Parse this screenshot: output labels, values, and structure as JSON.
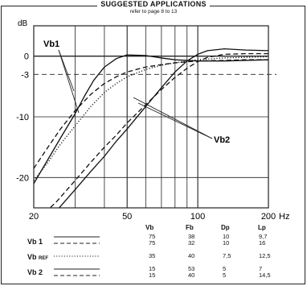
{
  "header": {
    "title": "SUGGESTED APPLICATIONS",
    "subtitle": "refer to page 8 to 13"
  },
  "chart_data": {
    "type": "line",
    "title": "SUGGESTED APPLICATIONS",
    "subtitle": "refer to page 8 to 13",
    "x_scale": "log",
    "xlim": [
      20,
      200
    ],
    "ylim": [
      -25,
      5
    ],
    "x_ticks": [
      20,
      50,
      100,
      200
    ],
    "x_tick_labels": [
      "20",
      "50",
      "100",
      "200"
    ],
    "x_unit": "Hz",
    "y_ticks": [
      0,
      -10,
      -20
    ],
    "y_tick_labels": [
      "0",
      "-10",
      "-20"
    ],
    "y_unit": "dB",
    "reference_level": -3,
    "reference_label": "-3",
    "grid": true,
    "annotations": [
      "Vb1",
      "Vb2"
    ],
    "series": [
      {
        "name": "Vb1",
        "style": "solid",
        "color": "#111111",
        "x": [
          20,
          23,
          26,
          30,
          33,
          36,
          40,
          45,
          50,
          60,
          70,
          80,
          100,
          130,
          160,
          200
        ],
        "values": [
          -21,
          -17,
          -13.5,
          -9.5,
          -6.5,
          -4,
          -1.8,
          -0.4,
          0.2,
          0.1,
          -0.3,
          -0.6,
          -0.8,
          -0.8,
          -0.7,
          -0.6
        ]
      },
      {
        "name": "Vb1",
        "style": "dashed",
        "color": "#111111",
        "x": [
          20,
          23,
          26,
          30,
          35,
          40,
          45,
          50,
          60,
          70,
          80,
          100,
          130,
          160,
          200
        ],
        "values": [
          -18.5,
          -15,
          -12,
          -9,
          -6.3,
          -4.5,
          -3.4,
          -2.6,
          -1.8,
          -1.4,
          -1.1,
          -0.8,
          -0.7,
          -0.6,
          -0.6
        ]
      },
      {
        "name": "Vb REF",
        "style": "dotted",
        "color": "#111111",
        "x": [
          20,
          23,
          26,
          30,
          35,
          40,
          45,
          50,
          60,
          70,
          80,
          100,
          130,
          160,
          200
        ],
        "values": [
          -20.5,
          -17.5,
          -14.5,
          -11.5,
          -8.3,
          -6,
          -4.5,
          -3.4,
          -2.2,
          -1.5,
          -1.1,
          -0.6,
          -0.3,
          -0.2,
          -0.1
        ]
      },
      {
        "name": "Vb2",
        "style": "solid",
        "color": "#111111",
        "x": [
          20,
          25,
          30,
          35,
          40,
          45,
          50,
          60,
          70,
          80,
          90,
          100,
          110,
          130,
          160,
          200
        ],
        "values": [
          -29,
          -25.5,
          -22,
          -19,
          -16.5,
          -14,
          -12,
          -8.3,
          -5.2,
          -2.6,
          -0.8,
          0.3,
          0.9,
          1.2,
          1.0,
          0.9
        ]
      },
      {
        "name": "Vb2",
        "style": "dashed",
        "color": "#111111",
        "x": [
          20,
          25,
          30,
          35,
          40,
          45,
          50,
          60,
          70,
          80,
          90,
          100,
          110,
          130,
          160,
          200
        ],
        "values": [
          -27.5,
          -24,
          -20.5,
          -17.5,
          -15,
          -13,
          -11,
          -8,
          -5.5,
          -3.5,
          -2,
          -0.9,
          -0.2,
          0.3,
          0.4,
          0.4
        ]
      }
    ],
    "table": {
      "columns": [
        "Vb",
        "Fb",
        "Dp",
        "Lp"
      ],
      "rows": [
        {
          "label": "Vb 1",
          "line": "solid",
          "values": [
            "75",
            "38",
            "10",
            "9,7"
          ]
        },
        {
          "label": "",
          "line": "dashed",
          "values": [
            "75",
            "32",
            "10",
            "16"
          ]
        },
        {
          "label": "Vb",
          "label_sub": "REF",
          "line": "dotted",
          "values": [
            "35",
            "40",
            "7,5",
            "12,5"
          ]
        },
        {
          "label": "Vb 2",
          "line": "solid",
          "values": [
            "15",
            "53",
            "5",
            "7"
          ]
        },
        {
          "label": "",
          "line": "dashed",
          "values": [
            "15",
            "40",
            "5",
            "14,5"
          ]
        }
      ]
    }
  }
}
